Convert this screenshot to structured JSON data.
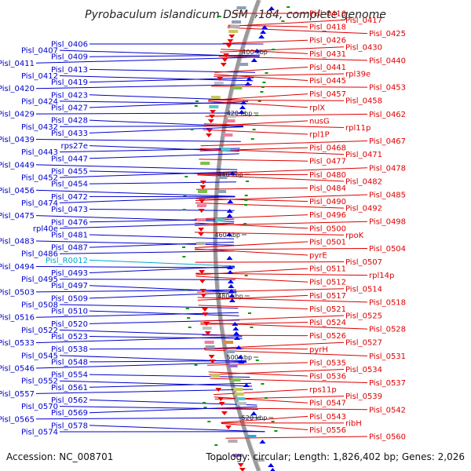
{
  "title": "Pyrobaculum islandicum DSM 4184, complete genome",
  "footer": {
    "accession": "Accession: NC_008701",
    "topology": "Topology: circular; Length: 1,826,402 bp; Genes: 2,026"
  },
  "colors": {
    "left_labels": "#0000cc",
    "right_labels": "#dd0000",
    "rna_label": "#00aacc",
    "backbone": "#9a9a9a",
    "forward_arrows": "#0000ee",
    "reverse_arrows": "#ee0000",
    "tick_marks": "#009900"
  },
  "kbp_ticks": [
    "400 kbp",
    "420 kbp",
    "440 kbp",
    "460 kbp",
    "480 kbp",
    "500 kbp",
    "520 kbp"
  ],
  "left_labels": [
    "Pisl_0406",
    "Pisl_0407",
    "Pisl_0409",
    "Pisl_0411",
    "Pisl_0413",
    "Pisl_0412",
    "Pisl_0419",
    "Pisl_0420",
    "Pisl_0423",
    "Pisl_0424",
    "Pisl_0427",
    "Pisl_0429",
    "Pisl_0428",
    "Pisl_0432",
    "Pisl_0433",
    "Pisl_0439",
    "rps27e",
    "Pisl_0443",
    "Pisl_0447",
    "Pisl_0449",
    "Pisl_0455",
    "Pisl_0452",
    "Pisl_0454",
    "Pisl_0456",
    "Pisl_0472",
    "Pisl_0474",
    "Pisl_0473",
    "Pisl_0475",
    "Pisl_0476",
    "rpl40e",
    "Pisl_0481",
    "Pisl_0483",
    "Pisl_0487",
    "Pisl_0486",
    "Pisl_R0012",
    "Pisl_0494",
    "Pisl_0493",
    "Pisl_0495",
    "Pisl_0497",
    "Pisl_0503",
    "Pisl_0509",
    "Pisl_0508",
    "Pisl_0510",
    "Pisl_0516",
    "Pisl_0520",
    "Pisl_0522",
    "Pisl_0523",
    "Pisl_0533",
    "Pisl_0538",
    "Pisl_0545",
    "Pisl_0548",
    "Pisl_0546",
    "Pisl_0554",
    "Pisl_0552",
    "Pisl_0561",
    "Pisl_0557",
    "Pisl_0562",
    "Pisl_0570",
    "Pisl_0569",
    "Pisl_0565",
    "Pisl_0578",
    "Pisl_0574"
  ],
  "right_labels": [
    "Pisl_0416",
    "Pisl_0417",
    "Pisl_0418",
    "Pisl_0425",
    "Pisl_0426",
    "Pisl_0430",
    "Pisl_0431",
    "Pisl_0440",
    "Pisl_0441",
    "rpl39e",
    "Pisl_0445",
    "Pisl_0453",
    "Pisl_0457",
    "Pisl_0458",
    "rplX",
    "Pisl_0462",
    "nusG",
    "rpl11p",
    "rpl1P",
    "Pisl_0467",
    "Pisl_0468",
    "Pisl_0471",
    "Pisl_0477",
    "Pisl_0478",
    "Pisl_0480",
    "Pisl_0482",
    "Pisl_0484",
    "Pisl_0485",
    "Pisl_0490",
    "Pisl_0492",
    "Pisl_0496",
    "Pisl_0498",
    "Pisl_0500",
    "rpoK",
    "Pisl_0501",
    "Pisl_0504",
    "pyrE",
    "Pisl_0507",
    "Pisl_0511",
    "rpl14p",
    "Pisl_0512",
    "Pisl_0514",
    "Pisl_0517",
    "Pisl_0518",
    "Pisl_0521",
    "Pisl_0525",
    "Pisl_0524",
    "Pisl_0528",
    "Pisl_0526",
    "Pisl_0527",
    "pyrH",
    "Pisl_0531",
    "Pisl_0535",
    "Pisl_0534",
    "Pisl_0536",
    "Pisl_0537",
    "rps11p",
    "Pisl_0539",
    "Pisl_0547",
    "Pisl_0542",
    "Pisl_0543",
    "ribH",
    "Pisl_0556",
    "Pisl_0560"
  ]
}
